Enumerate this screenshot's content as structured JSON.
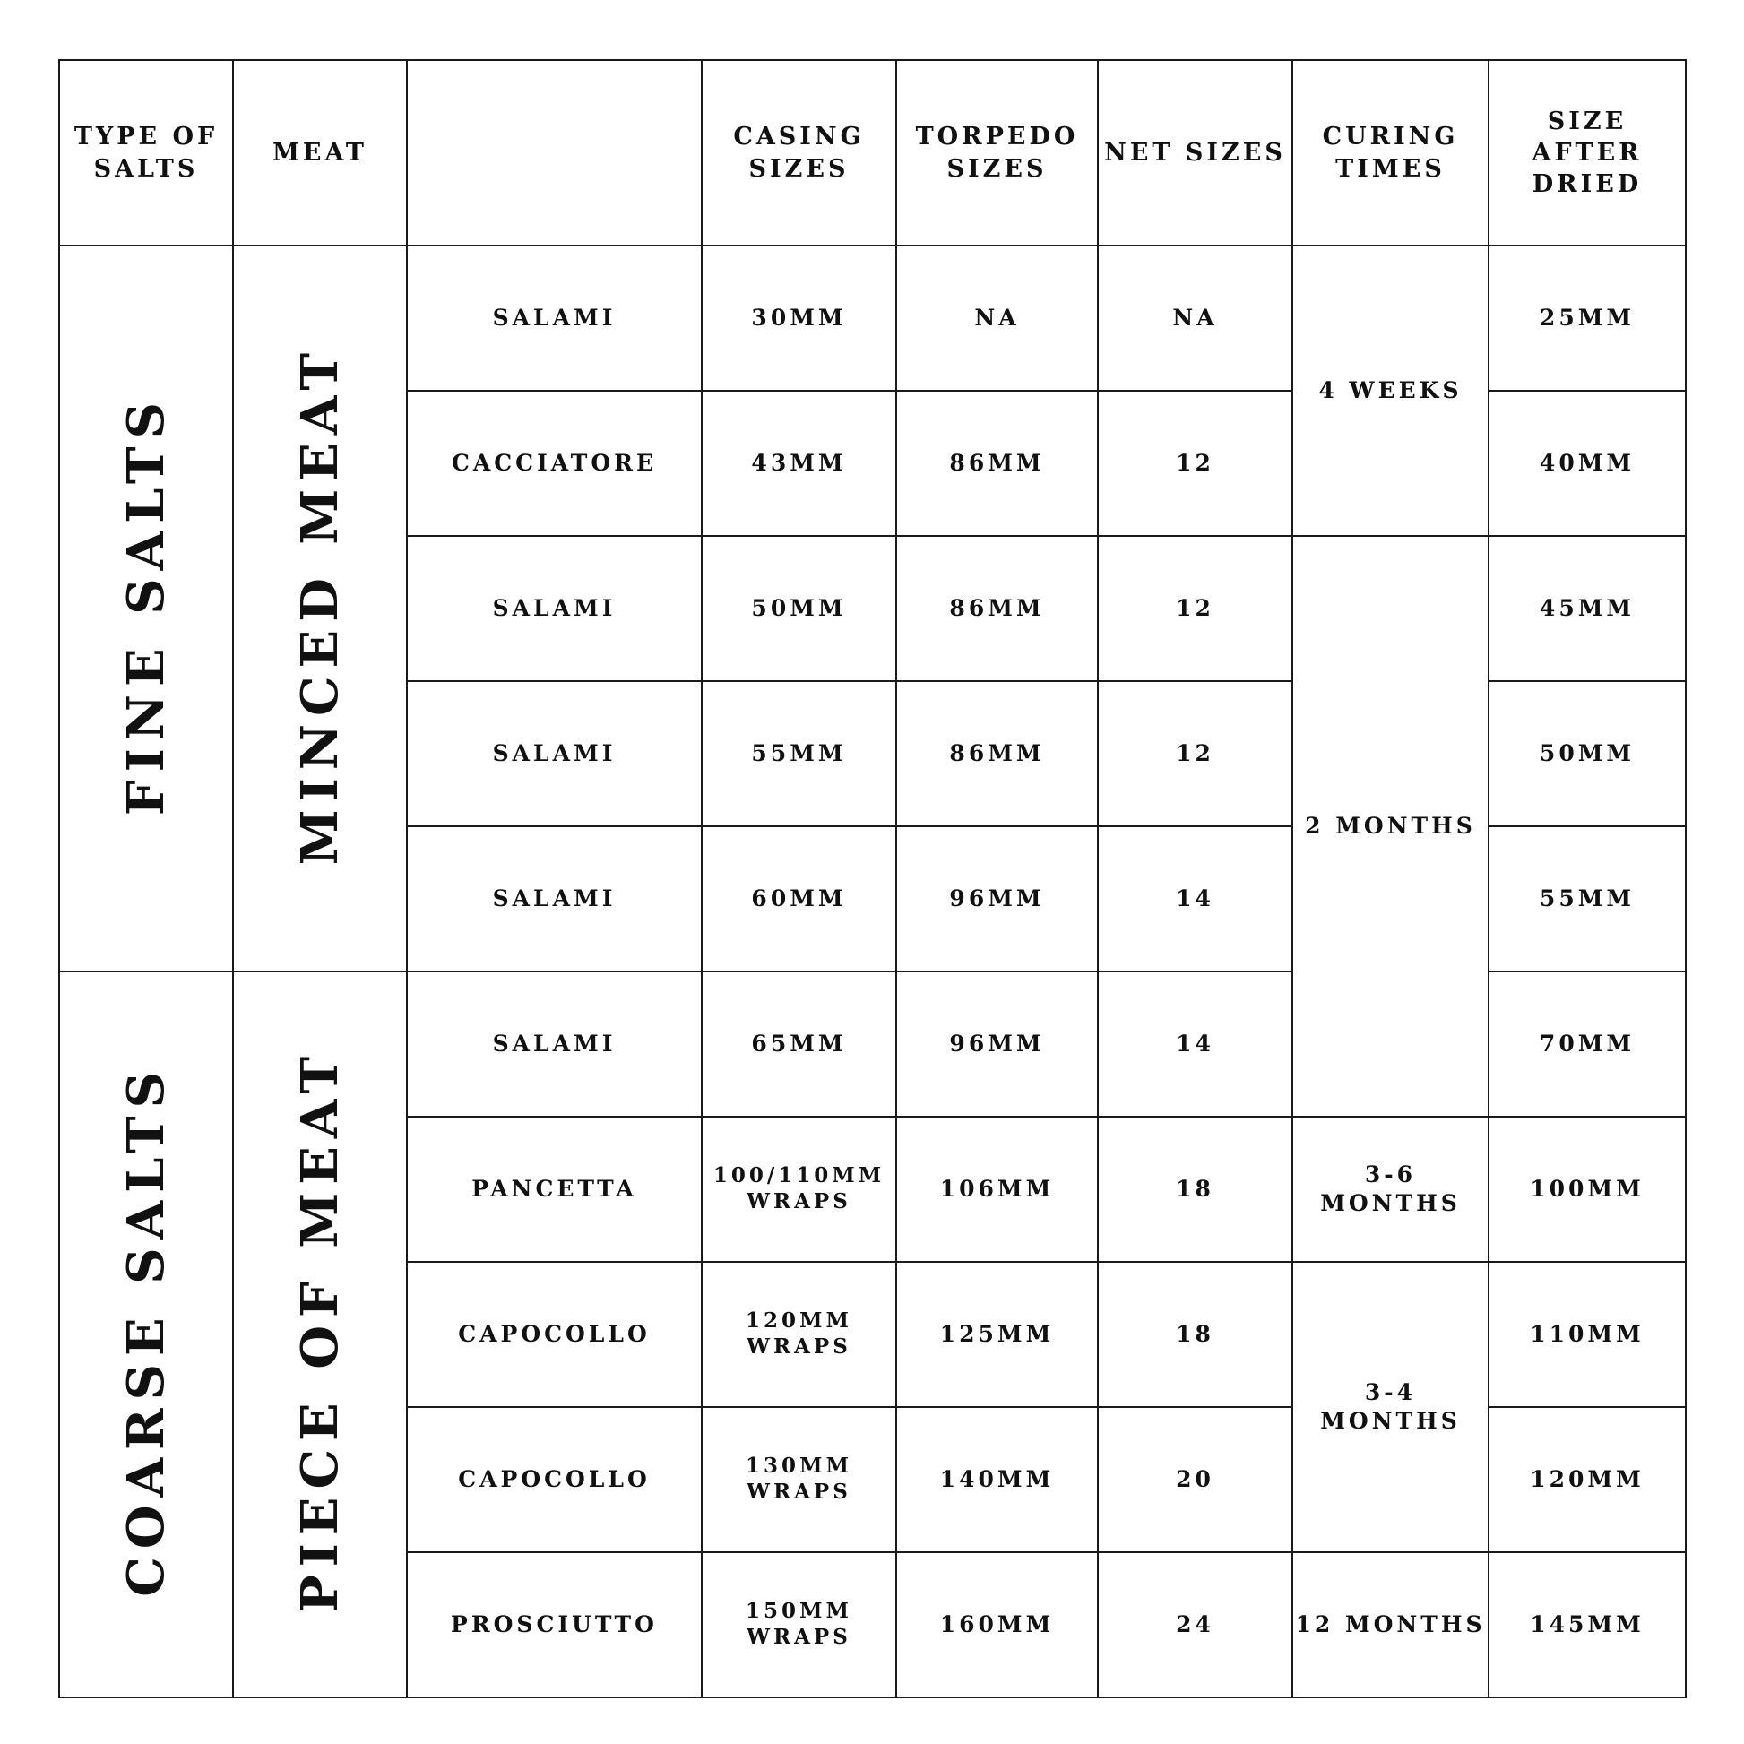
{
  "headers": [
    "TYPE OF SALTS",
    "MEAT",
    "",
    "CASING SIZES",
    "TORPEDO SIZES",
    "NET SIZES",
    "CURING TIMES",
    "SIZE AFTER DRIED"
  ],
  "groups": {
    "fine_salts": "FINE SALTS",
    "minced_meat": "MINCED MEAT",
    "coarse_salts": "COARSE SALTS",
    "piece_of_meat": "PIECE OF MEAT"
  },
  "curing": {
    "c1": "4 WEEKS",
    "c2": "2 MONTHS",
    "c3": "3-6 MONTHS",
    "c4": "3-4 MONTHS",
    "c5": "12 MONTHS"
  },
  "rows": [
    {
      "name": "SALAMI",
      "casing": "30MM",
      "torpedo": "NA",
      "net": "NA",
      "dried": "25MM"
    },
    {
      "name": "CACCIATORE",
      "casing": "43MM",
      "torpedo": "86MM",
      "net": "12",
      "dried": "40MM"
    },
    {
      "name": "SALAMI",
      "casing": "50MM",
      "torpedo": "86MM",
      "net": "12",
      "dried": "45MM"
    },
    {
      "name": "SALAMI",
      "casing": "55MM",
      "torpedo": "86MM",
      "net": "12",
      "dried": "50MM"
    },
    {
      "name": "SALAMI",
      "casing": "60MM",
      "torpedo": "96MM",
      "net": "14",
      "dried": "55MM"
    },
    {
      "name": "SALAMI",
      "casing": "65MM",
      "torpedo": "96MM",
      "net": "14",
      "dried": "70MM"
    },
    {
      "name": "PANCETTA",
      "casing": "100/110MM WRAPS",
      "torpedo": "106MM",
      "net": "18",
      "dried": "100MM"
    },
    {
      "name": "CAPOCOLLO",
      "casing": "120MM WRAPS",
      "torpedo": "125MM",
      "net": "18",
      "dried": "110MM"
    },
    {
      "name": "CAPOCOLLO",
      "casing": "130MM WRAPS",
      "torpedo": "140MM",
      "net": "20",
      "dried": "120MM"
    },
    {
      "name": "PROSCIUTTO",
      "casing": "150MM WRAPS",
      "torpedo": "160MM",
      "net": "24",
      "dried": "145MM"
    }
  ]
}
